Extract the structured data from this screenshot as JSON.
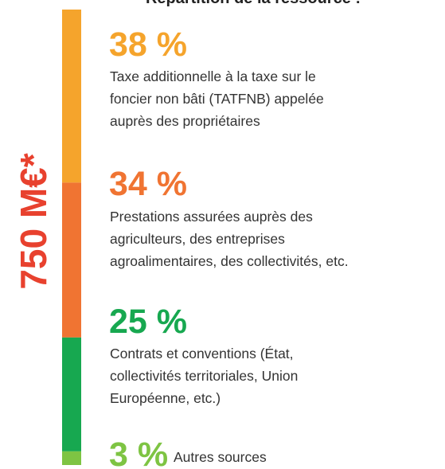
{
  "chart_data": {
    "type": "stacked-bar",
    "title": "Répartition de la ressource :",
    "total_label": "750 M€*",
    "total_color": "#e8412e",
    "values": [
      38,
      34,
      25,
      3
    ],
    "value_labels": [
      "38 %",
      "34 %",
      "25 %",
      "3 %"
    ],
    "colors": [
      "#f5a42c",
      "#f07432",
      "#17a850",
      "#7ec443"
    ],
    "descriptions": [
      [
        "Taxe additionnelle à la taxe sur le",
        "foncier non bâti (TATFNB) appelée",
        "auprès des propriétaires"
      ],
      [
        "Prestations assurées auprès des",
        "agriculteurs, des entreprises",
        "agroalimentaires, des collectivités, etc."
      ],
      [
        "Contrats et conventions (État,",
        "collectivités territoriales, Union",
        "Européenne, etc.)"
      ],
      [
        "Autres sources"
      ]
    ]
  }
}
